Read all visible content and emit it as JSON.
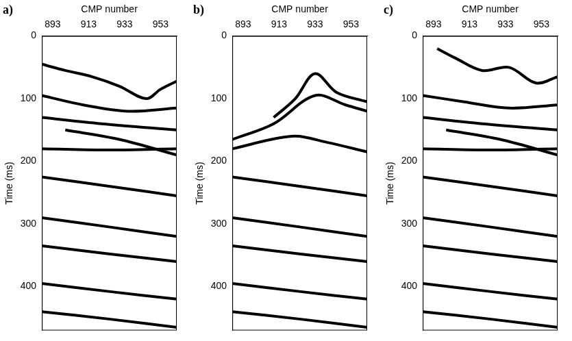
{
  "chart_data": [
    {
      "type": "line",
      "title": "a)",
      "x_label": "CMP number",
      "y_label": "Time (ms)",
      "xlim": [
        887,
        962
      ],
      "xticks": [
        893,
        913,
        933,
        953
      ],
      "ylim": [
        470,
        0
      ],
      "yticks": [
        0,
        100,
        200,
        300,
        400
      ],
      "grid": false,
      "color": "#000000",
      "series": [
        {
          "x": [
            887,
            900,
            915,
            930,
            945,
            953,
            962
          ],
          "values": [
            45,
            55,
            65,
            80,
            100,
            85,
            72
          ]
        },
        {
          "x": [
            887,
            910,
            935,
            962
          ],
          "values": [
            95,
            110,
            120,
            115
          ]
        },
        {
          "x": [
            887,
            920,
            962
          ],
          "values": [
            130,
            140,
            150
          ]
        },
        {
          "x": [
            900,
            930,
            962
          ],
          "values": [
            150,
            165,
            190
          ]
        },
        {
          "x": [
            887,
            925,
            962
          ],
          "values": [
            180,
            182,
            180
          ]
        },
        {
          "x": [
            887,
            925,
            962
          ],
          "values": [
            225,
            240,
            255
          ]
        },
        {
          "x": [
            887,
            925,
            962
          ],
          "values": [
            290,
            305,
            320
          ]
        },
        {
          "x": [
            887,
            925,
            962
          ],
          "values": [
            335,
            348,
            360
          ]
        },
        {
          "x": [
            887,
            925,
            962
          ],
          "values": [
            395,
            408,
            420
          ]
        },
        {
          "x": [
            887,
            925,
            962
          ],
          "values": [
            440,
            452,
            465
          ]
        }
      ]
    },
    {
      "type": "line",
      "title": "b)",
      "x_label": "CMP number",
      "y_label": "Time (ms)",
      "xlim": [
        887,
        962
      ],
      "xticks": [
        893,
        913,
        933,
        953
      ],
      "ylim": [
        470,
        0
      ],
      "yticks": [
        0,
        100,
        200,
        300,
        400
      ],
      "grid": false,
      "color": "#000000",
      "series": [
        {
          "x": [
            910,
            922,
            933,
            945,
            962
          ],
          "values": [
            130,
            100,
            60,
            90,
            105
          ]
        },
        {
          "x": [
            887,
            910,
            933,
            950,
            962
          ],
          "values": [
            165,
            140,
            95,
            110,
            120
          ]
        },
        {
          "x": [
            887,
            920,
            940,
            962
          ],
          "values": [
            180,
            160,
            170,
            185
          ]
        },
        {
          "x": [
            887,
            925,
            962
          ],
          "values": [
            225,
            240,
            255
          ]
        },
        {
          "x": [
            887,
            925,
            962
          ],
          "values": [
            290,
            305,
            320
          ]
        },
        {
          "x": [
            887,
            925,
            962
          ],
          "values": [
            335,
            348,
            360
          ]
        },
        {
          "x": [
            887,
            925,
            962
          ],
          "values": [
            395,
            408,
            420
          ]
        },
        {
          "x": [
            887,
            925,
            962
          ],
          "values": [
            440,
            452,
            465
          ]
        }
      ]
    },
    {
      "type": "line",
      "title": "c)",
      "x_label": "CMP number",
      "y_label": "Time (ms)",
      "xlim": [
        887,
        962
      ],
      "xticks": [
        893,
        913,
        933,
        953
      ],
      "ylim": [
        470,
        0
      ],
      "yticks": [
        0,
        100,
        200,
        300,
        400
      ],
      "grid": false,
      "color": "#000000",
      "series": [
        {
          "x": [
            895,
            905,
            920,
            935,
            950,
            962
          ],
          "values": [
            20,
            35,
            55,
            50,
            75,
            65
          ]
        },
        {
          "x": [
            887,
            910,
            935,
            962
          ],
          "values": [
            95,
            105,
            115,
            110
          ]
        },
        {
          "x": [
            887,
            920,
            962
          ],
          "values": [
            130,
            140,
            150
          ]
        },
        {
          "x": [
            900,
            930,
            962
          ],
          "values": [
            150,
            165,
            190
          ]
        },
        {
          "x": [
            887,
            925,
            962
          ],
          "values": [
            180,
            182,
            180
          ]
        },
        {
          "x": [
            887,
            925,
            962
          ],
          "values": [
            225,
            240,
            255
          ]
        },
        {
          "x": [
            887,
            925,
            962
          ],
          "values": [
            290,
            305,
            320
          ]
        },
        {
          "x": [
            887,
            925,
            962
          ],
          "values": [
            335,
            348,
            360
          ]
        },
        {
          "x": [
            887,
            925,
            962
          ],
          "values": [
            395,
            408,
            420
          ]
        },
        {
          "x": [
            887,
            925,
            962
          ],
          "values": [
            440,
            452,
            465
          ]
        }
      ]
    }
  ]
}
